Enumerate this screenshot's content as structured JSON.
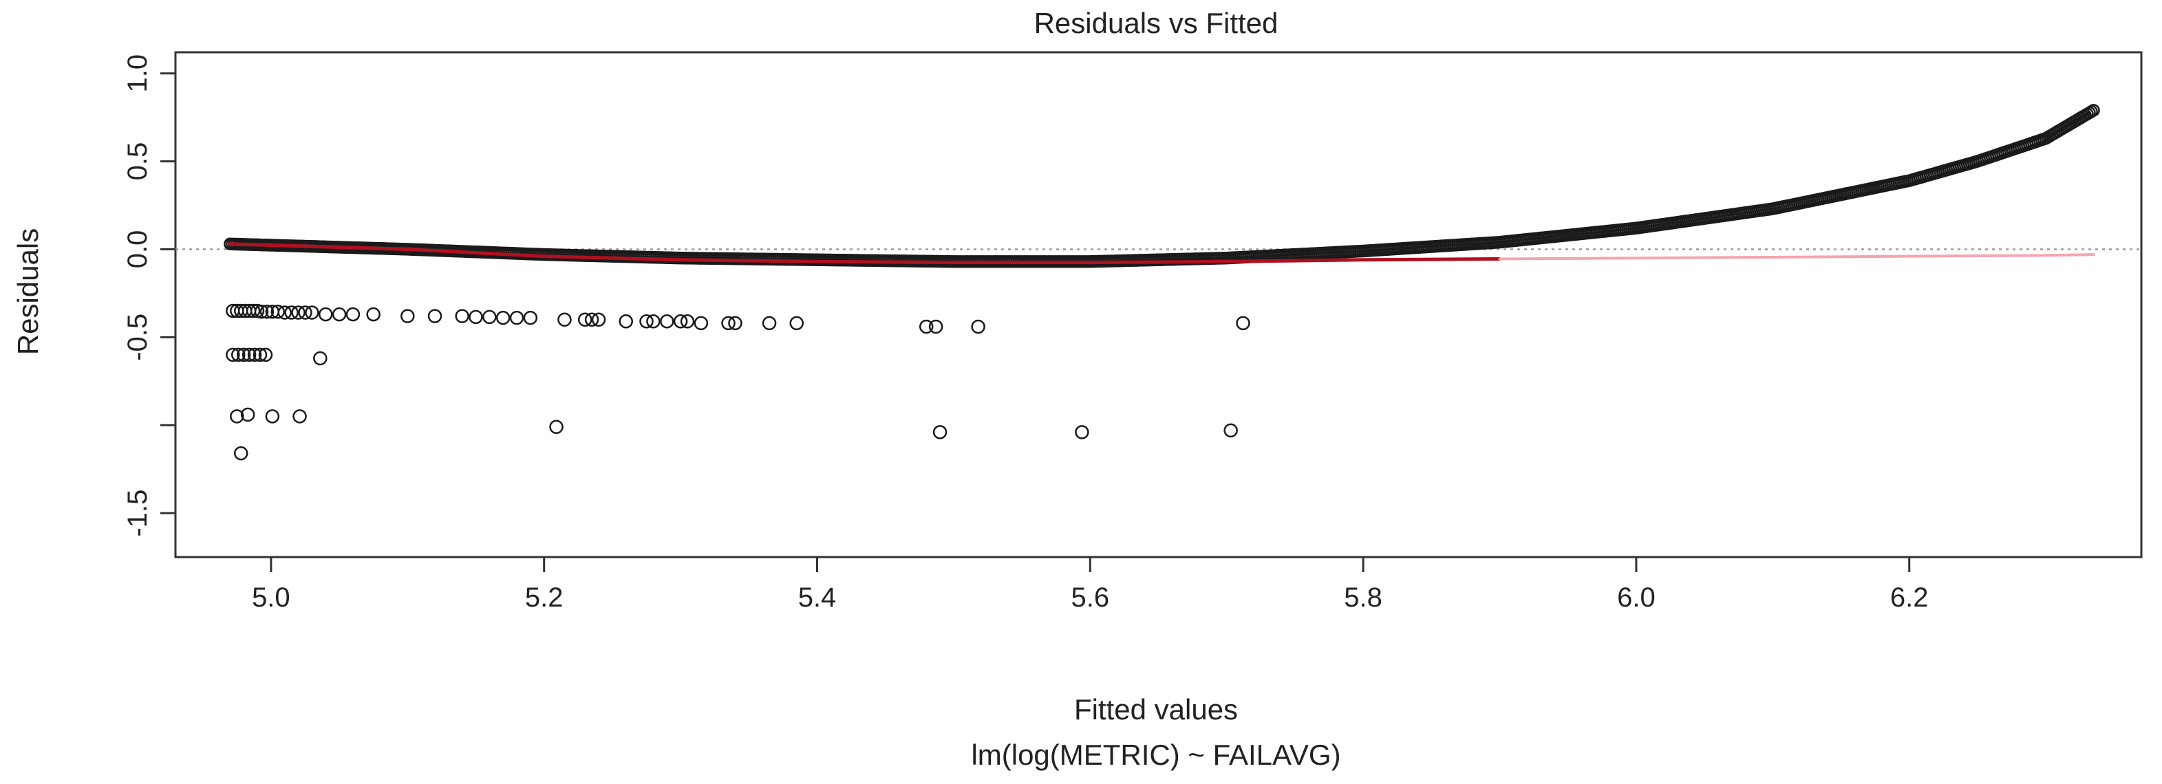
{
  "colors": {
    "points": "#1a1a1a",
    "smooth_line": "#b01020",
    "smooth_line_faded": "#f4a5b0",
    "zero_line": "#9a9a9a",
    "axis": "#333333"
  },
  "chart_data": {
    "type": "scatter",
    "title": "Residuals vs Fitted",
    "xlabel": "Fitted values",
    "subtitle": "lm(log(METRIC) ~ FAILAVG)",
    "ylabel": "Residuals",
    "xlim": [
      4.93,
      6.37
    ],
    "ylim": [
      -1.75,
      1.12
    ],
    "x_ticks": [
      5.0,
      5.2,
      5.4,
      5.6,
      5.8,
      6.0,
      6.2
    ],
    "x_tick_labels": [
      "5.0",
      "5.2",
      "5.4",
      "5.6",
      "5.8",
      "6.0",
      "6.2"
    ],
    "y_ticks": [
      1.0,
      0.5,
      0.0,
      -0.5,
      -1.0,
      -1.5
    ],
    "y_tick_labels": [
      "1.0",
      "0.5",
      "0.0",
      "-0.5",
      "",
      "-1.5"
    ],
    "reference_line_y": 0.0,
    "dense_curve": {
      "description": "dense band of observations along a rising curve",
      "x": [
        4.97,
        5.1,
        5.2,
        5.3,
        5.4,
        5.5,
        5.6,
        5.7,
        5.8,
        5.9,
        6.0,
        6.1,
        6.2,
        6.25,
        6.3,
        6.335
      ],
      "y": [
        0.03,
        0.0,
        -0.03,
        -0.05,
        -0.06,
        -0.07,
        -0.07,
        -0.05,
        -0.01,
        0.04,
        0.12,
        0.23,
        0.39,
        0.5,
        0.63,
        0.79
      ]
    },
    "points": [
      {
        "x": 4.972,
        "y": -0.35
      },
      {
        "x": 4.975,
        "y": -0.35
      },
      {
        "x": 4.978,
        "y": -0.35
      },
      {
        "x": 4.981,
        "y": -0.35
      },
      {
        "x": 4.984,
        "y": -0.35
      },
      {
        "x": 4.987,
        "y": -0.35
      },
      {
        "x": 4.99,
        "y": -0.35
      },
      {
        "x": 4.993,
        "y": -0.355
      },
      {
        "x": 4.997,
        "y": -0.355
      },
      {
        "x": 5.001,
        "y": -0.355
      },
      {
        "x": 5.005,
        "y": -0.355
      },
      {
        "x": 5.01,
        "y": -0.36
      },
      {
        "x": 5.015,
        "y": -0.36
      },
      {
        "x": 5.02,
        "y": -0.36
      },
      {
        "x": 5.025,
        "y": -0.36
      },
      {
        "x": 5.03,
        "y": -0.36
      },
      {
        "x": 5.04,
        "y": -0.37
      },
      {
        "x": 5.05,
        "y": -0.37
      },
      {
        "x": 5.06,
        "y": -0.37
      },
      {
        "x": 5.075,
        "y": -0.37
      },
      {
        "x": 5.1,
        "y": -0.38
      },
      {
        "x": 5.12,
        "y": -0.38
      },
      {
        "x": 5.14,
        "y": -0.38
      },
      {
        "x": 5.15,
        "y": -0.385
      },
      {
        "x": 5.16,
        "y": -0.385
      },
      {
        "x": 5.17,
        "y": -0.39
      },
      {
        "x": 5.18,
        "y": -0.39
      },
      {
        "x": 5.19,
        "y": -0.39
      },
      {
        "x": 5.215,
        "y": -0.4
      },
      {
        "x": 5.23,
        "y": -0.4
      },
      {
        "x": 5.235,
        "y": -0.4
      },
      {
        "x": 5.24,
        "y": -0.4
      },
      {
        "x": 5.26,
        "y": -0.41
      },
      {
        "x": 5.275,
        "y": -0.41
      },
      {
        "x": 5.28,
        "y": -0.41
      },
      {
        "x": 5.29,
        "y": -0.41
      },
      {
        "x": 5.3,
        "y": -0.41
      },
      {
        "x": 5.305,
        "y": -0.41
      },
      {
        "x": 5.315,
        "y": -0.42
      },
      {
        "x": 5.335,
        "y": -0.42
      },
      {
        "x": 5.34,
        "y": -0.42
      },
      {
        "x": 5.365,
        "y": -0.42
      },
      {
        "x": 5.385,
        "y": -0.42
      },
      {
        "x": 5.48,
        "y": -0.44
      },
      {
        "x": 5.487,
        "y": -0.44
      },
      {
        "x": 5.518,
        "y": -0.44
      },
      {
        "x": 5.712,
        "y": -0.42
      },
      {
        "x": 4.972,
        "y": -0.6
      },
      {
        "x": 4.976,
        "y": -0.6
      },
      {
        "x": 4.98,
        "y": -0.6
      },
      {
        "x": 4.984,
        "y": -0.6
      },
      {
        "x": 4.988,
        "y": -0.6
      },
      {
        "x": 4.992,
        "y": -0.6
      },
      {
        "x": 4.996,
        "y": -0.6
      },
      {
        "x": 5.036,
        "y": -0.62
      },
      {
        "x": 4.975,
        "y": -0.95
      },
      {
        "x": 4.983,
        "y": -0.94
      },
      {
        "x": 5.001,
        "y": -0.95
      },
      {
        "x": 5.021,
        "y": -0.95
      },
      {
        "x": 5.209,
        "y": -1.01
      },
      {
        "x": 5.49,
        "y": -1.04
      },
      {
        "x": 5.594,
        "y": -1.04
      },
      {
        "x": 5.703,
        "y": -1.03
      },
      {
        "x": 4.978,
        "y": -1.16
      }
    ],
    "smooth_line": {
      "color": "red",
      "x": [
        4.97,
        5.1,
        5.2,
        5.3,
        5.4,
        5.5,
        5.6,
        5.7,
        5.8,
        5.9,
        6.0,
        6.1,
        6.2,
        6.3,
        6.335
      ],
      "y": [
        0.03,
        0.0,
        -0.04,
        -0.06,
        -0.07,
        -0.075,
        -0.075,
        -0.07,
        -0.06,
        -0.055,
        -0.05,
        -0.045,
        -0.04,
        -0.035,
        -0.03
      ]
    }
  }
}
